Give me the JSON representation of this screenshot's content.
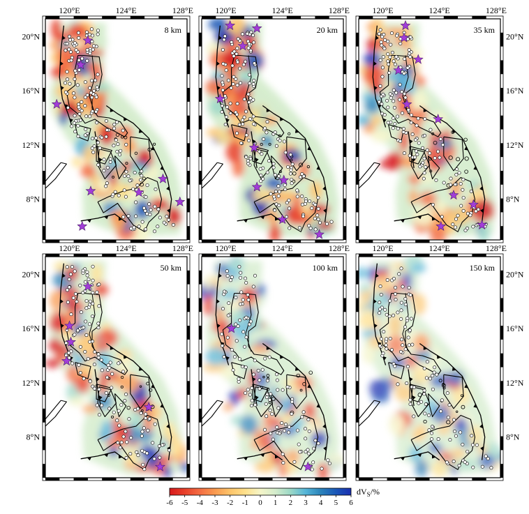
{
  "figure": {
    "panels": [
      {
        "id": "p1",
        "depth_label": "8 km",
        "intensity": 1.0,
        "stars": [
          [
            121.3,
            19.7
          ],
          [
            120.8,
            17.9
          ],
          [
            119.1,
            15.0
          ],
          [
            121.5,
            8.6
          ],
          [
            120.9,
            6.0
          ],
          [
            126.6,
            9.5
          ],
          [
            127.8,
            7.8
          ],
          [
            124.9,
            8.5
          ]
        ]
      },
      {
        "id": "p2",
        "depth_label": "20 km",
        "intensity": 1.0,
        "stars": [
          [
            120.3,
            20.8
          ],
          [
            122.2,
            20.6
          ],
          [
            121.2,
            19.3
          ],
          [
            119.6,
            15.4
          ],
          [
            122.0,
            11.8
          ],
          [
            122.2,
            8.9
          ],
          [
            124.0,
            6.5
          ],
          [
            126.6,
            5.4
          ],
          [
            124.1,
            9.4
          ]
        ]
      },
      {
        "id": "p3",
        "depth_label": "35 km",
        "intensity": 0.85,
        "stars": [
          [
            121.6,
            20.8
          ],
          [
            121.5,
            19.9
          ],
          [
            122.5,
            18.3
          ],
          [
            121.1,
            17.5
          ],
          [
            123.9,
            13.9
          ],
          [
            121.7,
            15.0
          ],
          [
            125.0,
            8.3
          ],
          [
            124.1,
            6.0
          ],
          [
            126.4,
            7.6
          ],
          [
            127.0,
            6.1
          ]
        ]
      },
      {
        "id": "p4",
        "depth_label": "50 km",
        "intensity": 0.7,
        "stars": [
          [
            121.3,
            19.1
          ],
          [
            120.0,
            16.2
          ],
          [
            120.1,
            15.0
          ],
          [
            119.8,
            13.6
          ],
          [
            126.4,
            5.8
          ],
          [
            125.6,
            10.2
          ]
        ]
      },
      {
        "id": "p5",
        "depth_label": "100 km",
        "intensity": 0.55,
        "stars": [
          [
            120.4,
            16.0
          ],
          [
            125.8,
            5.8
          ]
        ]
      },
      {
        "id": "p6",
        "depth_label": "150 km",
        "intensity": 0.45,
        "stars": []
      }
    ],
    "axes": {
      "lon_ticks": [
        "120°E",
        "124°E",
        "128°E"
      ],
      "lat_ticks": [
        "20°N",
        "16°N",
        "12°N",
        "8°N"
      ]
    },
    "colorbar": {
      "ticks": [
        "-6",
        "-5",
        "-4",
        "-3",
        "-2",
        "-1",
        "0",
        "1",
        "2",
        "3",
        "4",
        "5",
        "6"
      ],
      "label_prefix": "dV",
      "label_sub": "S",
      "label_suffix": "/%",
      "colors": [
        "#d7191c",
        "#e8402a",
        "#f46d43",
        "#f99a4f",
        "#fdc46a",
        "#fee08b",
        "#f5f5c8",
        "#d4eccc",
        "#9bd8c6",
        "#54b5d8",
        "#2b83ba",
        "#1a57b8",
        "#1a2fb0"
      ]
    }
  }
}
